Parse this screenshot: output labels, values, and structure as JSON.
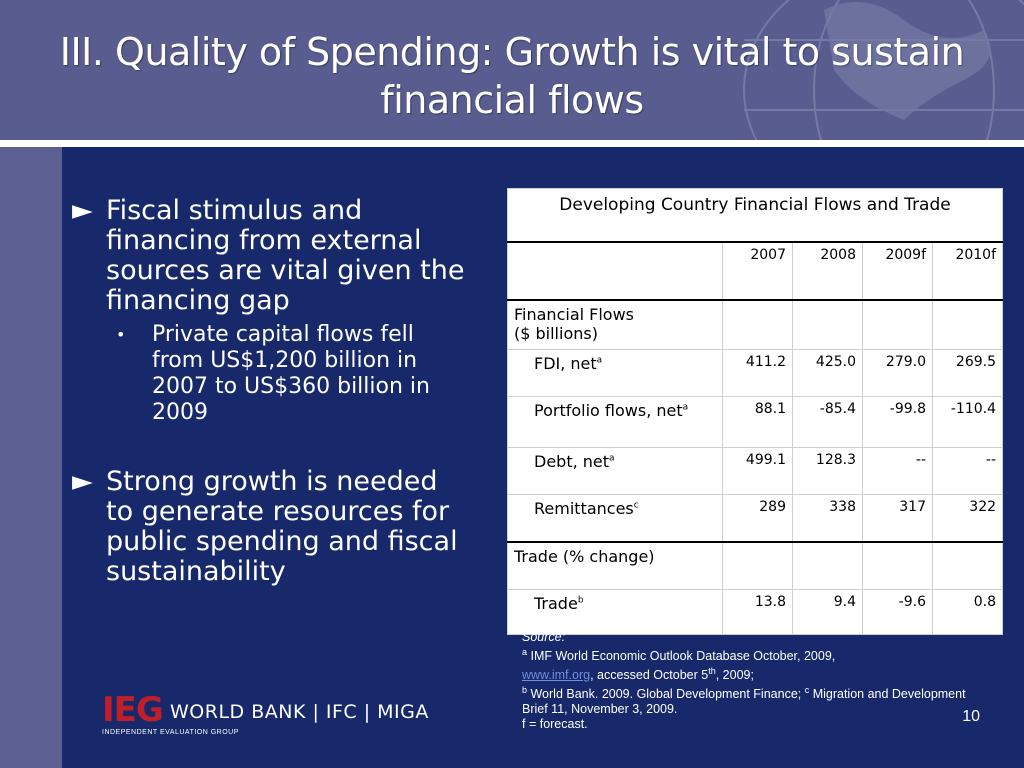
{
  "slide": {
    "title": "III.  Quality of Spending: Growth is vital to sustain financial flows",
    "page_number": "10"
  },
  "bullets": [
    {
      "marker": "►",
      "text": "Fiscal stimulus and financing from external sources are vital given the financing gap",
      "subbullets": [
        {
          "marker": "•",
          "text": "Private capital flows fell from US$1,200 billion in 2007 to US$360 billion in 2009"
        }
      ]
    },
    {
      "marker": "►",
      "text": "Strong growth is needed to generate resources for public spending and fiscal sustainability"
    }
  ],
  "table": {
    "caption": "Developing Country Financial Flows and Trade",
    "years": [
      "2007",
      "2008",
      "2009f",
      "2010f"
    ],
    "group1": {
      "label_line1": "Financial Flows",
      "label_line2": "($ billions)"
    },
    "rows1": [
      {
        "label": "FDI, net",
        "sup": "a",
        "values": [
          "411.2",
          "425.0",
          "279.0",
          "269.5"
        ]
      },
      {
        "label": "Portfolio flows, net",
        "sup": "a",
        "values": [
          "88.1",
          "-85.4",
          "-99.8",
          "-110.4"
        ]
      },
      {
        "label": "Debt, net",
        "sup": "a",
        "values": [
          "499.1",
          "128.3",
          "--",
          "--"
        ]
      },
      {
        "label": "Remittances",
        "sup": "c",
        "values": [
          "289",
          "338",
          "317",
          "322"
        ]
      }
    ],
    "group2": {
      "label": "Trade (% change)"
    },
    "rows2": [
      {
        "label": "Trade",
        "sup": "b",
        "values": [
          "13.8",
          "9.4",
          "-9.6",
          "0.8"
        ]
      }
    ]
  },
  "source": {
    "heading": "Source:",
    "line_a_sup": "a",
    "line_a": " IMF World Economic Outlook Database October, 2009,",
    "link": "www.imf.org",
    "accessed": ", accessed October 5",
    "accessed_sup": "th",
    "accessed_end": ", 2009;",
    "line_b_sup": "b",
    "line_b": " World Bank. 2009.  Global Development Finance; ",
    "line_c_sup": "c",
    "line_c": " Migration and Development Brief 11, November 3, 2009.",
    "forecast": "f = forecast."
  },
  "logo": {
    "ieg": "IEG",
    "orgs": "WORLD BANK  |  IFC  |  MIGA",
    "subtitle": "INDEPENDENT EVALUATION GROUP"
  },
  "colors": {
    "header_bg": "#585c8f",
    "content_bg": "#17296a",
    "logo_red": "#c01f2a"
  }
}
